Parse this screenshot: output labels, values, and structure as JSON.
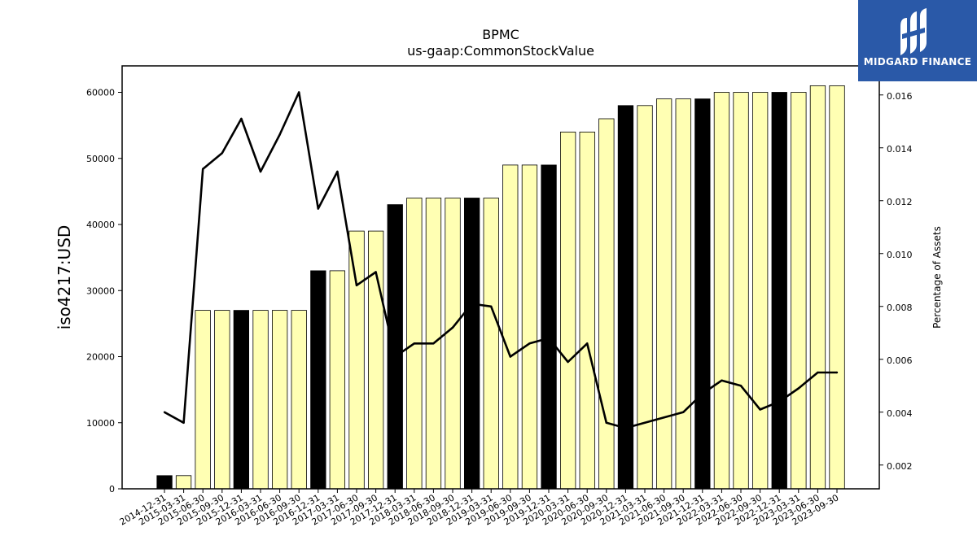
{
  "brand": {
    "name": "MIDGARD FINANCE",
    "bg_color": "#2a59a8"
  },
  "chart_data": {
    "type": "bar",
    "title": "BPMC",
    "subtitle": "us-gaap:CommonStockValue",
    "ylabel": "iso4217:USD",
    "y2label": "Percentage of Assets",
    "ylim": [
      0,
      64000
    ],
    "y2lim": [
      0.0011,
      0.0171
    ],
    "yticks": [
      0,
      10000,
      20000,
      30000,
      40000,
      50000,
      60000
    ],
    "y2ticks": [
      "0.002",
      "0.004",
      "0.006",
      "0.008",
      "0.010",
      "0.012",
      "0.014",
      "0.016"
    ],
    "colors": {
      "annual": "#000000",
      "quarter": "#ffffb3",
      "line": "#000000"
    },
    "categories": [
      "2014-12-31",
      "2015-03-31",
      "2015-06-30",
      "2015-09-30",
      "2015-12-31",
      "2016-03-31",
      "2016-06-30",
      "2016-09-30",
      "2016-12-31",
      "2017-03-31",
      "2017-06-30",
      "2017-09-30",
      "2017-12-31",
      "2018-03-31",
      "2018-06-30",
      "2018-09-30",
      "2018-12-31",
      "2019-03-31",
      "2019-06-30",
      "2019-09-30",
      "2019-12-31",
      "2020-03-31",
      "2020-06-30",
      "2020-09-30",
      "2020-12-31",
      "2021-03-31",
      "2021-06-30",
      "2021-09-30",
      "2021-12-31",
      "2022-03-31",
      "2022-06-30",
      "2022-09-30",
      "2022-12-31",
      "2023-03-31",
      "2023-06-30",
      "2023-09-30"
    ],
    "series": [
      {
        "type": "bar",
        "values": [
          2000,
          2000,
          27000,
          27000,
          27000,
          27000,
          27000,
          27000,
          33000,
          33000,
          39000,
          39000,
          43000,
          44000,
          44000,
          44000,
          44000,
          44000,
          49000,
          49000,
          49000,
          54000,
          54000,
          56000,
          58000,
          58000,
          59000,
          59000,
          59000,
          60000,
          60000,
          60000,
          60000,
          60000,
          61000,
          61000
        ],
        "annual": [
          true,
          false,
          false,
          false,
          true,
          false,
          false,
          false,
          true,
          false,
          false,
          false,
          true,
          false,
          false,
          false,
          true,
          false,
          false,
          false,
          true,
          false,
          false,
          false,
          true,
          false,
          false,
          false,
          true,
          false,
          false,
          false,
          true,
          false,
          false,
          false
        ]
      },
      {
        "type": "line",
        "axis": "right",
        "values": [
          0.004,
          0.0036,
          0.0132,
          0.0138,
          0.0151,
          0.0131,
          0.0145,
          0.0161,
          0.0117,
          0.0131,
          0.0088,
          0.0093,
          0.0061,
          0.0066,
          0.0066,
          0.0072,
          0.0081,
          0.008,
          0.0061,
          0.0066,
          0.0068,
          0.0059,
          0.0066,
          0.0036,
          0.0034,
          0.0036,
          0.0038,
          0.004,
          0.0047,
          0.0052,
          0.005,
          0.0041,
          0.0044,
          0.0049,
          0.0055,
          0.0055
        ]
      }
    ]
  }
}
